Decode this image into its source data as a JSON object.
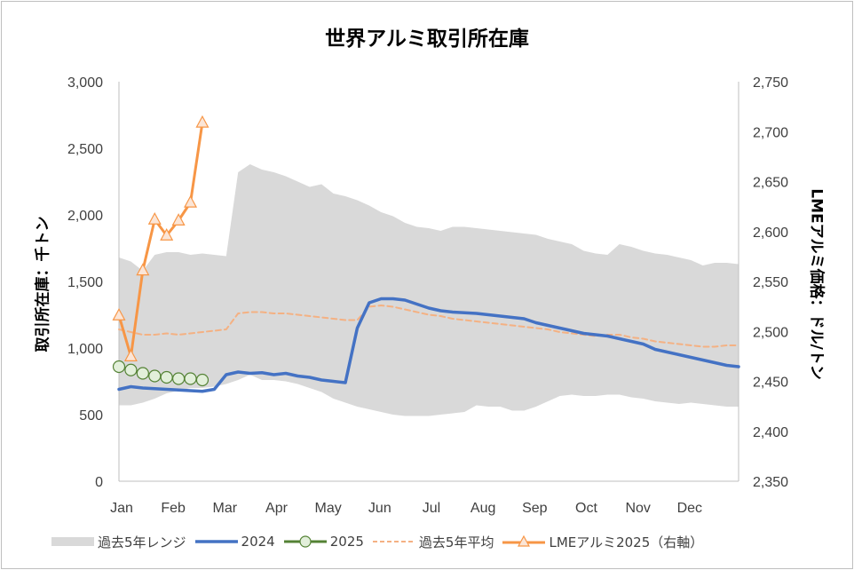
{
  "chart_data": {
    "type": "line",
    "title": "世界アルミ取引所在庫",
    "ylabel": "取引所在庫：千トン",
    "y2label": "LMEアルミ価格：ドル/トン",
    "x_tick_labels": [
      "Jan",
      "Feb",
      "Mar",
      "Apr",
      "May",
      "Jun",
      "Jul",
      "Aug",
      "Sep",
      "Oct",
      "Nov",
      "Dec"
    ],
    "x_range_weeks": [
      0,
      52
    ],
    "ylim": [
      0,
      3000
    ],
    "yticks": [
      0,
      500,
      1000,
      1500,
      2000,
      2500,
      3000
    ],
    "ytick_labels": [
      "0",
      "500",
      "1,000",
      "1,500",
      "2,000",
      "2,500",
      "3,000"
    ],
    "y2lim": [
      2350,
      2750
    ],
    "y2ticks": [
      2350,
      2400,
      2450,
      2500,
      2550,
      2600,
      2650,
      2700,
      2750
    ],
    "y2tick_labels": [
      "2,350",
      "2,400",
      "2,450",
      "2,500",
      "2,550",
      "2,600",
      "2,650",
      "2,700",
      "2,750"
    ],
    "grid": false,
    "legend_position": "bottom",
    "range_band": {
      "name": "過去5年レンジ",
      "color": "#d9d9d9",
      "x": [
        0,
        1,
        2,
        3,
        4,
        5,
        6,
        7,
        8,
        9,
        10,
        11,
        12,
        13,
        14,
        15,
        16,
        17,
        18,
        19,
        20,
        21,
        22,
        23,
        24,
        25,
        26,
        27,
        28,
        29,
        30,
        31,
        32,
        33,
        34,
        35,
        36,
        37,
        38,
        39,
        40,
        41,
        42,
        43,
        44,
        45,
        46,
        47,
        48,
        49,
        50,
        51,
        52
      ],
      "upper": [
        1680,
        1650,
        1580,
        1700,
        1720,
        1720,
        1700,
        1710,
        1700,
        1690,
        2320,
        2380,
        2340,
        2320,
        2290,
        2250,
        2210,
        2230,
        2160,
        2140,
        2110,
        2070,
        2020,
        1990,
        1940,
        1910,
        1900,
        1880,
        1910,
        1910,
        1900,
        1890,
        1880,
        1870,
        1860,
        1850,
        1820,
        1800,
        1780,
        1730,
        1710,
        1700,
        1780,
        1760,
        1730,
        1710,
        1700,
        1680,
        1660,
        1620,
        1640,
        1640,
        1630
      ],
      "lower": [
        570,
        570,
        590,
        620,
        660,
        680,
        700,
        700,
        710,
        730,
        760,
        800,
        760,
        760,
        750,
        730,
        700,
        670,
        620,
        590,
        560,
        540,
        520,
        500,
        490,
        490,
        490,
        500,
        510,
        520,
        570,
        560,
        560,
        530,
        530,
        560,
        600,
        640,
        650,
        640,
        640,
        650,
        650,
        630,
        620,
        600,
        590,
        580,
        590,
        580,
        570,
        560,
        560
      ]
    },
    "series": [
      {
        "name": "2024",
        "axis": "left",
        "color": "#4472c4",
        "x": [
          0,
          1,
          2,
          3,
          4,
          5,
          6,
          7,
          8,
          9,
          10,
          11,
          12,
          13,
          14,
          15,
          16,
          17,
          18,
          19,
          20,
          21,
          22,
          23,
          24,
          25,
          26,
          27,
          28,
          29,
          30,
          31,
          32,
          33,
          34,
          35,
          36,
          37,
          38,
          39,
          40,
          41,
          42,
          43,
          44,
          45,
          46,
          47,
          48,
          49,
          50,
          51,
          52
        ],
        "values": [
          690,
          710,
          700,
          695,
          690,
          685,
          680,
          675,
          690,
          800,
          820,
          810,
          815,
          800,
          810,
          790,
          780,
          760,
          750,
          740,
          1150,
          1340,
          1370,
          1370,
          1360,
          1330,
          1300,
          1280,
          1270,
          1265,
          1260,
          1250,
          1240,
          1230,
          1220,
          1190,
          1170,
          1150,
          1130,
          1110,
          1100,
          1090,
          1070,
          1050,
          1030,
          990,
          970,
          950,
          930,
          910,
          890,
          870,
          860
        ]
      },
      {
        "name": "2025",
        "axis": "left",
        "color": "#548235",
        "marker": "circle",
        "x": [
          0,
          1,
          2,
          3,
          4,
          5,
          6,
          7
        ],
        "values": [
          860,
          835,
          810,
          790,
          780,
          770,
          770,
          760
        ]
      },
      {
        "name": "過去5年平均",
        "axis": "left",
        "color": "#f4b183",
        "dashed": true,
        "x": [
          0,
          1,
          2,
          3,
          4,
          5,
          6,
          7,
          8,
          9,
          10,
          11,
          12,
          13,
          14,
          15,
          16,
          17,
          18,
          19,
          20,
          21,
          22,
          23,
          24,
          25,
          26,
          27,
          28,
          29,
          30,
          31,
          32,
          33,
          34,
          35,
          36,
          37,
          38,
          39,
          40,
          41,
          42,
          43,
          44,
          45,
          46,
          47,
          48,
          49,
          50,
          51,
          52
        ],
        "values": [
          1140,
          1120,
          1100,
          1100,
          1110,
          1100,
          1110,
          1120,
          1130,
          1140,
          1260,
          1270,
          1270,
          1260,
          1260,
          1250,
          1240,
          1230,
          1220,
          1210,
          1210,
          1310,
          1320,
          1310,
          1290,
          1270,
          1250,
          1240,
          1220,
          1210,
          1200,
          1190,
          1180,
          1170,
          1160,
          1150,
          1140,
          1120,
          1110,
          1100,
          1090,
          1100,
          1100,
          1080,
          1070,
          1050,
          1040,
          1030,
          1020,
          1010,
          1010,
          1020,
          1020
        ]
      },
      {
        "name": "LME アルミ2025（右軸）",
        "legend_label": "LMEアルミ2025（右軸）",
        "axis": "right",
        "color": "#f79646",
        "marker": "triangle",
        "x": [
          0,
          1,
          2,
          3,
          4,
          5,
          6,
          7
        ],
        "values": [
          2516,
          2475,
          2561,
          2612,
          2596,
          2611,
          2629,
          2709
        ]
      }
    ]
  }
}
